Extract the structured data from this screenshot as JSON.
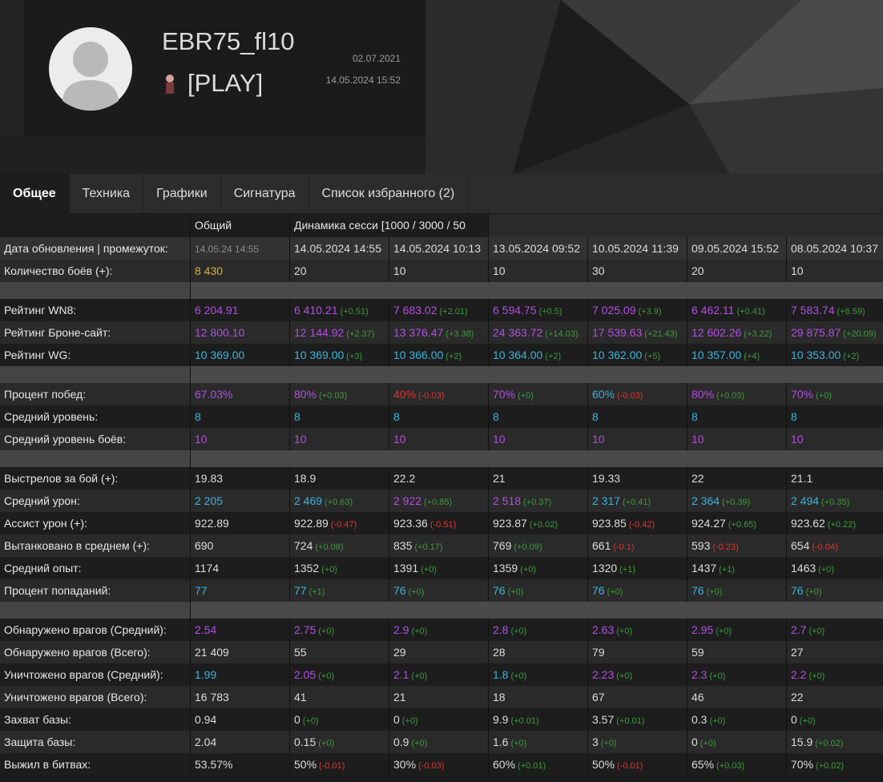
{
  "profile": {
    "name": "EBR75_fl10",
    "clan": "[PLAY]",
    "created": "02.07.2021",
    "updated": "14.05.2024 15:52"
  },
  "tabs": [
    "Общее",
    "Техника",
    "Графики",
    "Сигнатура",
    "Список избранного (2)"
  ],
  "table": {
    "columns": [
      "Общий",
      "Динамика сесси [1000 / 3000 / 50"
    ],
    "groups": [
      [
        {
          "label": "Дата обновления | промежуток:",
          "cells": [
            [
              "14.05.24 14:55",
              "#8a8a8a"
            ],
            [
              "14.05.2024 14:55",
              "#dddddd"
            ],
            [
              "14.05.2024 10:13",
              "#dddddd"
            ],
            [
              "13.05.2024 09:52",
              "#dddddd"
            ],
            [
              "10.05.2024 11:39",
              "#dddddd"
            ],
            [
              "09.05.2024 15:52",
              "#dddddd"
            ],
            [
              "08.05.2024 10:37",
              "#dddddd"
            ]
          ]
        },
        {
          "label": "Количество боёв (+):",
          "cells": [
            [
              "8 430",
              "#d4b338"
            ],
            [
              "20",
              "#dddddd"
            ],
            [
              "10",
              "#dddddd"
            ],
            [
              "10",
              "#dddddd"
            ],
            [
              "30",
              "#dddddd"
            ],
            [
              "20",
              "#dddddd"
            ],
            [
              "10",
              "#dddddd"
            ]
          ]
        }
      ],
      [
        {
          "label": "Рейтинг WN8:",
          "cells": [
            [
              "6 204.91",
              "#b24fe3"
            ],
            [
              "6 410.21",
              "#b24fe3",
              "(+0.51)"
            ],
            [
              "7 683.02",
              "#b24fe3",
              "(+2.01)"
            ],
            [
              "6 594.75",
              "#b24fe3",
              "(+0.5)"
            ],
            [
              "7 025.09",
              "#b24fe3",
              "(+3.9)"
            ],
            [
              "6 462.11",
              "#b24fe3",
              "(+0.41)"
            ],
            [
              "7 583.74",
              "#b24fe3",
              "(+6.59)"
            ]
          ]
        },
        {
          "label": "Рейтинг Броне-сайт:",
          "cells": [
            [
              "12 800.10",
              "#b24fe3"
            ],
            [
              "12 144.92",
              "#b24fe3",
              "(+2.37)"
            ],
            [
              "13 376.47",
              "#b24fe3",
              "(+3.38)"
            ],
            [
              "24 363.72",
              "#b24fe3",
              "(+14.03)"
            ],
            [
              "17 539.63",
              "#b24fe3",
              "(+21.43)"
            ],
            [
              "12 602.26",
              "#b24fe3",
              "(+3.22)"
            ],
            [
              "29 875.87",
              "#b24fe3",
              "(+20.09)"
            ]
          ]
        },
        {
          "label": "Рейтинг WG:",
          "cells": [
            [
              "10 369.00",
              "#3bb4dc"
            ],
            [
              "10 369.00",
              "#3bb4dc",
              "(+3)"
            ],
            [
              "10 366.00",
              "#3bb4dc",
              "(+2)"
            ],
            [
              "10 364.00",
              "#3bb4dc",
              "(+2)"
            ],
            [
              "10 362.00",
              "#3bb4dc",
              "(+5)"
            ],
            [
              "10 357.00",
              "#3bb4dc",
              "(+4)"
            ],
            [
              "10 353.00",
              "#3bb4dc",
              "(+2)"
            ]
          ]
        }
      ],
      [
        {
          "label": "Процент побед:",
          "cells": [
            [
              "67.03%",
              "#b24fe3"
            ],
            [
              "80%",
              "#b24fe3",
              "(+0.03)"
            ],
            [
              "40%",
              "#e23232",
              "(-0.03)"
            ],
            [
              "70%",
              "#b24fe3",
              "(+0)"
            ],
            [
              "60%",
              "#3bb4dc",
              "(-0.03)"
            ],
            [
              "80%",
              "#b24fe3",
              "(+0.03)"
            ],
            [
              "70%",
              "#b24fe3",
              "(+0)"
            ]
          ]
        },
        {
          "label": "Средний уровень:",
          "cells": [
            [
              "8",
              "#3bb4dc"
            ],
            [
              "8",
              "#3bb4dc"
            ],
            [
              "8",
              "#3bb4dc"
            ],
            [
              "8",
              "#3bb4dc"
            ],
            [
              "8",
              "#3bb4dc"
            ],
            [
              "8",
              "#3bb4dc"
            ],
            [
              "8",
              "#3bb4dc"
            ]
          ]
        },
        {
          "label": "Средний уровень боёв:",
          "cells": [
            [
              "10",
              "#b24fe3"
            ],
            [
              "10",
              "#b24fe3"
            ],
            [
              "10",
              "#b24fe3"
            ],
            [
              "10",
              "#b24fe3"
            ],
            [
              "10",
              "#b24fe3"
            ],
            [
              "10",
              "#b24fe3"
            ],
            [
              "10",
              "#b24fe3"
            ]
          ]
        }
      ],
      [
        {
          "label": "Выстрелов за бой (+):",
          "cells": [
            [
              "19.83",
              "#dddddd"
            ],
            [
              "18.9",
              "#dddddd"
            ],
            [
              "22.2",
              "#dddddd"
            ],
            [
              "21",
              "#dddddd"
            ],
            [
              "19.33",
              "#dddddd"
            ],
            [
              "22",
              "#dddddd"
            ],
            [
              "21.1",
              "#dddddd"
            ]
          ]
        },
        {
          "label": "Средний урон:",
          "cells": [
            [
              "2 205",
              "#3bb4dc"
            ],
            [
              "2 469",
              "#3bb4dc",
              "(+0.63)"
            ],
            [
              "2 922",
              "#b24fe3",
              "(+0.85)"
            ],
            [
              "2 518",
              "#b24fe3",
              "(+0.37)"
            ],
            [
              "2 317",
              "#3bb4dc",
              "(+0.41)"
            ],
            [
              "2 364",
              "#3bb4dc",
              "(+0.39)"
            ],
            [
              "2 494",
              "#3bb4dc",
              "(+0.35)"
            ]
          ]
        },
        {
          "label": "Ассист урон (+):",
          "cells": [
            [
              "922.89",
              "#dddddd"
            ],
            [
              "922.89",
              "#dddddd",
              "(-0.47)"
            ],
            [
              "923.36",
              "#dddddd",
              "(-0.51)"
            ],
            [
              "923.87",
              "#dddddd",
              "(+0.02)"
            ],
            [
              "923.85",
              "#dddddd",
              "(-0.42)"
            ],
            [
              "924.27",
              "#dddddd",
              "(+0.65)"
            ],
            [
              "923.62",
              "#dddddd",
              "(+0.22)"
            ]
          ]
        },
        {
          "label": "Вытанковано в среднем (+):",
          "cells": [
            [
              "690",
              "#dddddd"
            ],
            [
              "724",
              "#dddddd",
              "(+0.08)"
            ],
            [
              "835",
              "#dddddd",
              "(+0.17)"
            ],
            [
              "769",
              "#dddddd",
              "(+0.09)"
            ],
            [
              "661",
              "#dddddd",
              "(-0.1)"
            ],
            [
              "593",
              "#dddddd",
              "(-0.23)"
            ],
            [
              "654",
              "#dddddd",
              "(-0.04)"
            ]
          ]
        },
        {
          "label": "Средний опыт:",
          "cells": [
            [
              "1174",
              "#dddddd"
            ],
            [
              "1352",
              "#dddddd",
              "(+0)"
            ],
            [
              "1391",
              "#dddddd",
              "(+0)"
            ],
            [
              "1359",
              "#dddddd",
              "(+0)"
            ],
            [
              "1320",
              "#dddddd",
              "(+1)"
            ],
            [
              "1437",
              "#dddddd",
              "(+1)"
            ],
            [
              "1463",
              "#dddddd",
              "(+0)"
            ]
          ]
        },
        {
          "label": "Процент попаданий:",
          "cells": [
            [
              "77",
              "#3bb4dc"
            ],
            [
              "77",
              "#3bb4dc",
              "(+1)"
            ],
            [
              "76",
              "#3bb4dc",
              "(+0)"
            ],
            [
              "76",
              "#3bb4dc",
              "(+0)"
            ],
            [
              "76",
              "#3bb4dc",
              "(+0)"
            ],
            [
              "76",
              "#3bb4dc",
              "(+0)"
            ],
            [
              "76",
              "#3bb4dc",
              "(+0)"
            ]
          ]
        }
      ],
      [
        {
          "label": "Обнаружено врагов (Средний):",
          "cells": [
            [
              "2.54",
              "#b24fe3"
            ],
            [
              "2.75",
              "#b24fe3",
              "(+0)"
            ],
            [
              "2.9",
              "#b24fe3",
              "(+0)"
            ],
            [
              "2.8",
              "#b24fe3",
              "(+0)"
            ],
            [
              "2.63",
              "#b24fe3",
              "(+0)"
            ],
            [
              "2.95",
              "#b24fe3",
              "(+0)"
            ],
            [
              "2.7",
              "#b24fe3",
              "(+0)"
            ]
          ]
        },
        {
          "label": "Обнаружено врагов (Всего):",
          "cells": [
            [
              "21 409",
              "#dddddd"
            ],
            [
              "55",
              "#dddddd"
            ],
            [
              "29",
              "#dddddd"
            ],
            [
              "28",
              "#dddddd"
            ],
            [
              "79",
              "#dddddd"
            ],
            [
              "59",
              "#dddddd"
            ],
            [
              "27",
              "#dddddd"
            ]
          ]
        },
        {
          "label": "Уничтожено врагов (Средний):",
          "cells": [
            [
              "1.99",
              "#3bb4dc"
            ],
            [
              "2.05",
              "#b24fe3",
              "(+0)"
            ],
            [
              "2.1",
              "#b24fe3",
              "(+0)"
            ],
            [
              "1.8",
              "#3bb4dc",
              "(+0)"
            ],
            [
              "2.23",
              "#b24fe3",
              "(+0)"
            ],
            [
              "2.3",
              "#b24fe3",
              "(+0)"
            ],
            [
              "2.2",
              "#b24fe3",
              "(+0)"
            ]
          ]
        },
        {
          "label": "Уничтожено врагов (Всего):",
          "cells": [
            [
              "16 783",
              "#dddddd"
            ],
            [
              "41",
              "#dddddd"
            ],
            [
              "21",
              "#dddddd"
            ],
            [
              "18",
              "#dddddd"
            ],
            [
              "67",
              "#dddddd"
            ],
            [
              "46",
              "#dddddd"
            ],
            [
              "22",
              "#dddddd"
            ]
          ]
        },
        {
          "label": "Захват базы:",
          "cells": [
            [
              "0.94",
              "#dddddd"
            ],
            [
              "0",
              "#dddddd",
              "(+0)"
            ],
            [
              "0",
              "#dddddd",
              "(+0)"
            ],
            [
              "9.9",
              "#dddddd",
              "(+0.01)"
            ],
            [
              "3.57",
              "#dddddd",
              "(+0.01)"
            ],
            [
              "0.3",
              "#dddddd",
              "(+0)"
            ],
            [
              "0",
              "#dddddd",
              "(+0)"
            ]
          ]
        },
        {
          "label": "Защита базы:",
          "cells": [
            [
              "2.04",
              "#dddddd"
            ],
            [
              "0.15",
              "#dddddd",
              "(+0)"
            ],
            [
              "0.9",
              "#dddddd",
              "(+0)"
            ],
            [
              "1.6",
              "#dddddd",
              "(+0)"
            ],
            [
              "3",
              "#dddddd",
              "(+0)"
            ],
            [
              "0",
              "#dddddd",
              "(+0)"
            ],
            [
              "15.9",
              "#dddddd",
              "(+0.02)"
            ]
          ]
        },
        {
          "label": "Выжил в битвах:",
          "cells": [
            [
              "53.57%",
              "#dddddd"
            ],
            [
              "50%",
              "#dddddd",
              "(-0.01)"
            ],
            [
              "30%",
              "#dddddd",
              "(-0.03)"
            ],
            [
              "60%",
              "#dddddd",
              "(+0.01)"
            ],
            [
              "50%",
              "#dddddd",
              "(-0.01)"
            ],
            [
              "65%",
              "#dddddd",
              "(+0.03)"
            ],
            [
              "70%",
              "#dddddd",
              "(+0.02)"
            ]
          ]
        }
      ]
    ]
  }
}
